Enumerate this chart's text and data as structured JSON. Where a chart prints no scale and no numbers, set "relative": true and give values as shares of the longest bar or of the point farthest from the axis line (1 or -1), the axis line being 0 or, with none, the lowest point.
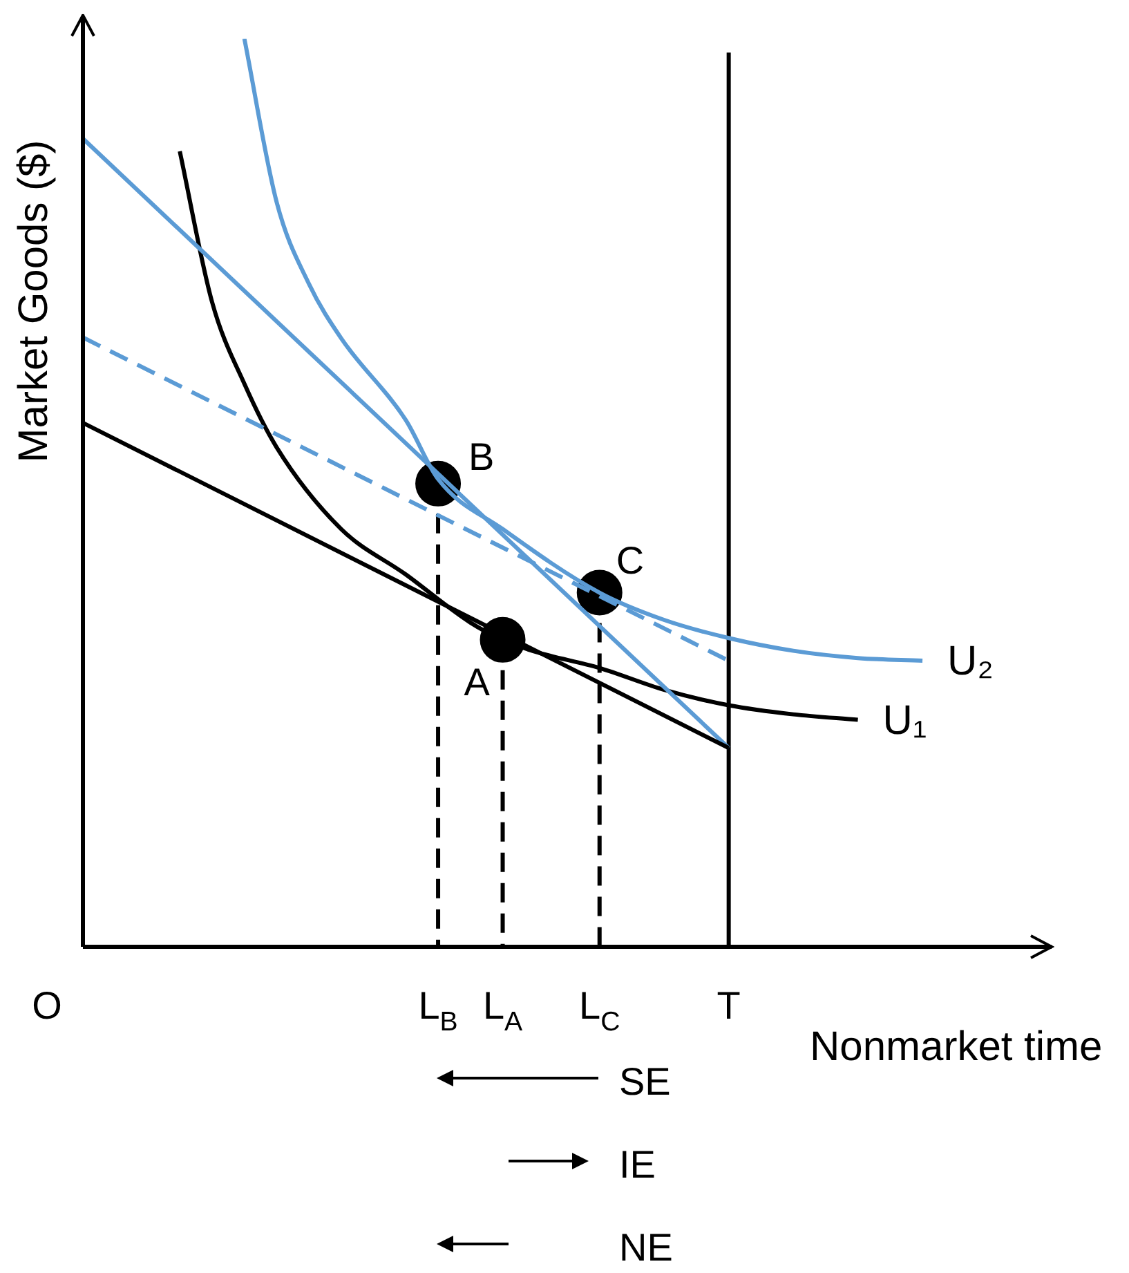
{
  "chart_data": {
    "type": "line",
    "relative": true,
    "xlabel": "Nonmarket time",
    "ylabel": "Market Goods ($)",
    "categories": [
      "O",
      null,
      null,
      null,
      null,
      null,
      null,
      null,
      null,
      null,
      null,
      "L$_{B}$",
      null,
      "L$_{A}$",
      null,
      null,
      "L$_{C}$",
      null,
      null,
      null,
      "T",
      null,
      null,
      null,
      null,
      null,
      null,
      null,
      null,
      null,
      null
    ],
    "tick_labels": "x",
    "legend": false,
    "marker": "none",
    "ref_lines": [
      {
        "axis": "x",
        "value": "T",
        "color": "#000000"
      }
    ],
    "series": [
      {
        "color": "#000000",
        "values": [
          0.577,
          null,
          null,
          null,
          null,
          null,
          null,
          null,
          null,
          null,
          null,
          null,
          null,
          null,
          null,
          null,
          null,
          null,
          null,
          null,
          0.219,
          null,
          null,
          null,
          null,
          null,
          null,
          null,
          null,
          null,
          null
        ]
      },
      {
        "color": "#5b9bd5",
        "values": [
          0.89,
          null,
          null,
          null,
          null,
          null,
          null,
          null,
          null,
          null,
          null,
          null,
          null,
          null,
          null,
          null,
          null,
          null,
          null,
          null,
          0.219,
          null,
          null,
          null,
          null,
          null,
          null,
          null,
          null,
          null,
          null
        ]
      },
      {
        "color": "#5b9bd5",
        "line_style": "dashed",
        "values": [
          0.671,
          null,
          null,
          null,
          null,
          null,
          null,
          null,
          null,
          null,
          null,
          null,
          null,
          null,
          null,
          null,
          null,
          null,
          null,
          null,
          0.315,
          null,
          null,
          null,
          null,
          null,
          null,
          null,
          null,
          null,
          null
        ]
      },
      {
        "name": "U₁",
        "color": "#000000",
        "values": [
          null,
          null,
          null,
          0.876,
          0.71,
          0.62,
          0.55,
          null,
          0.46,
          null,
          0.41,
          null,
          0.357,
          0.338,
          0.325,
          null,
          0.307,
          null,
          0.283,
          null,
          0.266,
          null,
          0.256,
          null,
          0.25,
          null,
          null,
          null,
          null,
          null,
          null
        ]
      },
      {
        "name": "U₂",
        "color": "#5b9bd5",
        "values": [
          null,
          null,
          null,
          null,
          null,
          1,
          0.82,
          0.73,
          0.67,
          null,
          0.58,
          0.515,
          null,
          0.46,
          null,
          null,
          0.39,
          null,
          0.36,
          null,
          0.34,
          null,
          0.326,
          null,
          0.318,
          null,
          0.315,
          null,
          null,
          null,
          null
        ]
      },
      {
        "type": "scatter",
        "marker": "circle",
        "color": "#000000",
        "values": [
          null,
          null,
          null,
          null,
          null,
          null,
          null,
          null,
          null,
          null,
          null,
          0.51,
          null,
          0.338,
          null,
          null,
          0.39,
          null,
          null,
          null,
          null,
          null,
          null,
          null,
          null,
          null,
          null,
          null,
          null,
          null,
          null
        ]
      }
    ],
    "annotations": [
      {
        "text": "B",
        "x": "L$_{B}$",
        "y": 0.51
      },
      {
        "text": "A",
        "x": "L$_{A}$",
        "y": 0.338
      },
      {
        "text": "C",
        "x": "L$_{C}$",
        "y": 0.39
      },
      "SE",
      "IE",
      "NE"
    ]
  }
}
